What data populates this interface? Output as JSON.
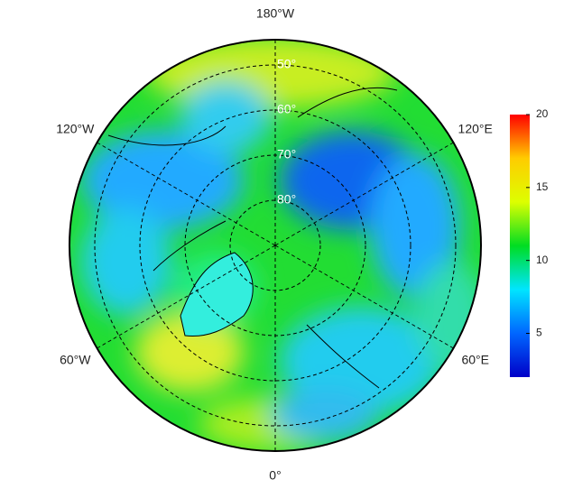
{
  "map": {
    "longitude_ticks": [
      {
        "value": 180,
        "label": "180°W"
      },
      {
        "value": -120,
        "label": "120°W"
      },
      {
        "value": 120,
        "label": "120°E"
      },
      {
        "value": -60,
        "label": "60°W"
      },
      {
        "value": 60,
        "label": "60°E"
      },
      {
        "value": 0,
        "label": "0°"
      }
    ],
    "latitude_ticks": [
      {
        "value": 50,
        "label": "50°"
      },
      {
        "value": 60,
        "label": "60°"
      },
      {
        "value": 70,
        "label": "70°"
      },
      {
        "value": 80,
        "label": "80°"
      }
    ]
  },
  "colorbar": {
    "range": [
      2,
      20
    ],
    "ticks": [
      5,
      10,
      15,
      20
    ],
    "colors": [
      "#0000c8",
      "#0066ff",
      "#00e5ff",
      "#00dd22",
      "#ddff00",
      "#ffcc00",
      "#ff0000"
    ]
  }
}
